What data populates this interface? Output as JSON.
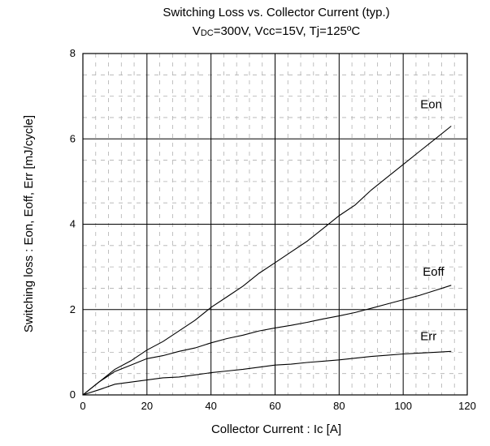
{
  "chart_data": {
    "type": "line",
    "title": "Switching Loss vs. Collector Current (typ.)",
    "subtitle_parts": {
      "v": "V",
      "dc": "DC",
      "rest": "=300V, Vcc=15V, Tj=125ºC"
    },
    "xlabel": "Collector Current : Ic [A]",
    "ylabel": "Switching loss : Eon, Eoff, Err [mJ/cycle]",
    "xlim": [
      0,
      120
    ],
    "ylim": [
      0,
      8
    ],
    "xticks": [
      "0",
      "20",
      "40",
      "60",
      "80",
      "100",
      "120"
    ],
    "yticks": [
      "0",
      "2",
      "4",
      "6",
      "8"
    ],
    "grid": "major solid, minor dashed",
    "series": [
      {
        "name": "Eon",
        "x": [
          0,
          5,
          10,
          15,
          20,
          25,
          30,
          35,
          40,
          45,
          50,
          55,
          60,
          65,
          70,
          75,
          80,
          85,
          90,
          95,
          100,
          105,
          110,
          115
        ],
        "y": [
          0,
          0.3,
          0.6,
          0.8,
          1.05,
          1.25,
          1.5,
          1.75,
          2.05,
          2.3,
          2.55,
          2.85,
          3.1,
          3.35,
          3.6,
          3.9,
          4.2,
          4.45,
          4.8,
          5.1,
          5.4,
          5.7,
          6.0,
          6.3
        ]
      },
      {
        "name": "Eoff",
        "x": [
          0,
          5,
          10,
          15,
          20,
          25,
          30,
          35,
          40,
          45,
          50,
          55,
          60,
          65,
          70,
          75,
          80,
          85,
          90,
          95,
          100,
          105,
          110,
          115
        ],
        "y": [
          0,
          0.3,
          0.55,
          0.7,
          0.85,
          0.92,
          1.02,
          1.1,
          1.22,
          1.32,
          1.4,
          1.5,
          1.57,
          1.63,
          1.7,
          1.78,
          1.85,
          1.93,
          2.03,
          2.13,
          2.23,
          2.33,
          2.45,
          2.57
        ]
      },
      {
        "name": "Err",
        "x": [
          0,
          5,
          10,
          15,
          20,
          25,
          30,
          35,
          40,
          45,
          50,
          55,
          60,
          65,
          70,
          75,
          80,
          85,
          90,
          95,
          100,
          105,
          110,
          115
        ],
        "y": [
          0,
          0.12,
          0.25,
          0.3,
          0.35,
          0.4,
          0.42,
          0.47,
          0.52,
          0.56,
          0.6,
          0.65,
          0.7,
          0.72,
          0.76,
          0.79,
          0.82,
          0.86,
          0.9,
          0.93,
          0.96,
          0.98,
          1.0,
          1.02
        ]
      }
    ]
  }
}
